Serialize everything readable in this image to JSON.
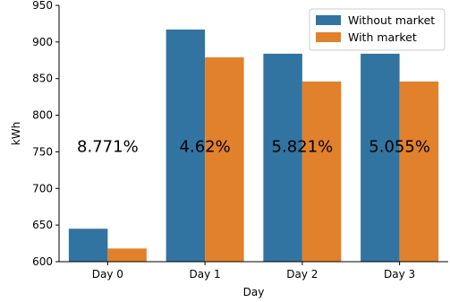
{
  "chart_data": {
    "type": "bar",
    "categories": [
      "Day 0",
      "Day 1",
      "Day 2",
      "Day 3"
    ],
    "series": [
      {
        "name": "Without market",
        "values": [
          645,
          917,
          884,
          884
        ],
        "color": "#3274a1"
      },
      {
        "name": "With market",
        "values": [
          618,
          879,
          846,
          846
        ],
        "color": "#e1812c"
      }
    ],
    "annotations": [
      "8.771%",
      "4.62%",
      "5.821%",
      "5.055%"
    ],
    "annotation_y": 757,
    "xlabel": "Day",
    "ylabel": "kWh",
    "ylim": [
      600,
      950
    ],
    "yticks": [
      600,
      650,
      700,
      750,
      800,
      850,
      900,
      950
    ],
    "grid": false,
    "legend_position": "top-right"
  }
}
